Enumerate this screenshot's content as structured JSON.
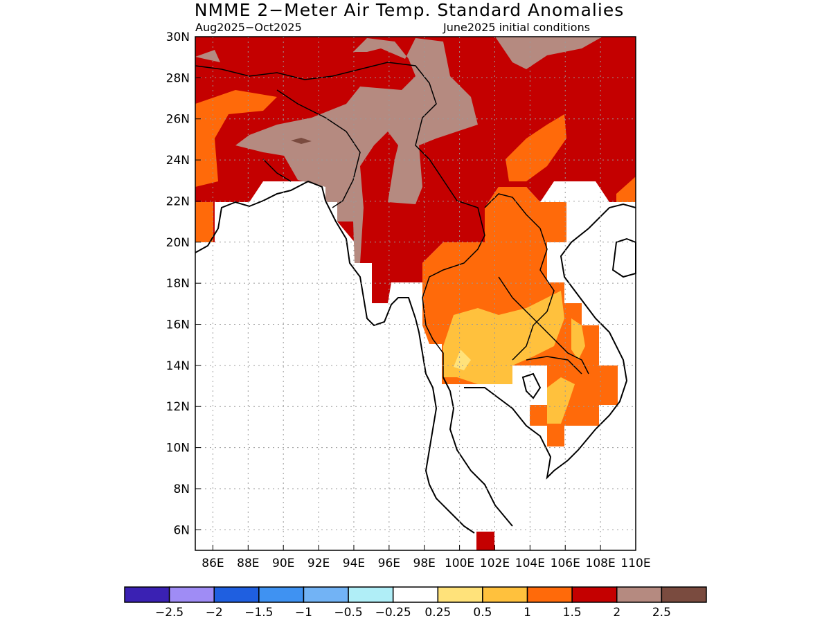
{
  "title": "NMME 2−Meter Air Temp. Standard Anomalies",
  "subtitle_left": "Aug2025−Oct2025",
  "subtitle_right": "June2025 initial conditions",
  "map": {
    "lon_range": [
      85,
      110
    ],
    "lat_range": [
      5,
      30
    ],
    "x_ticks": [
      "86E",
      "88E",
      "90E",
      "92E",
      "94E",
      "96E",
      "98E",
      "100E",
      "102E",
      "104E",
      "106E",
      "108E",
      "110E"
    ],
    "y_ticks": [
      "30N",
      "28N",
      "26N",
      "24N",
      "22N",
      "20N",
      "18N",
      "16N",
      "14N",
      "12N",
      "10N",
      "8N",
      "6N"
    ],
    "grid": true
  },
  "colorbar": {
    "colors": [
      "#3a21b3",
      "#9f8cf5",
      "#1f5fe0",
      "#3f92f2",
      "#72b3f5",
      "#b0eef7",
      "#ffffff",
      "#ffe27a",
      "#ffc13d",
      "#ff6a0a",
      "#c40000",
      "#b58a80",
      "#7a4b3f"
    ],
    "labels": [
      "−2.5",
      "−2",
      "−1.5",
      "−1",
      "−0.5",
      "−0.25",
      "0.25",
      "0.5",
      "1",
      "1.5",
      "2",
      "2.5"
    ]
  }
}
